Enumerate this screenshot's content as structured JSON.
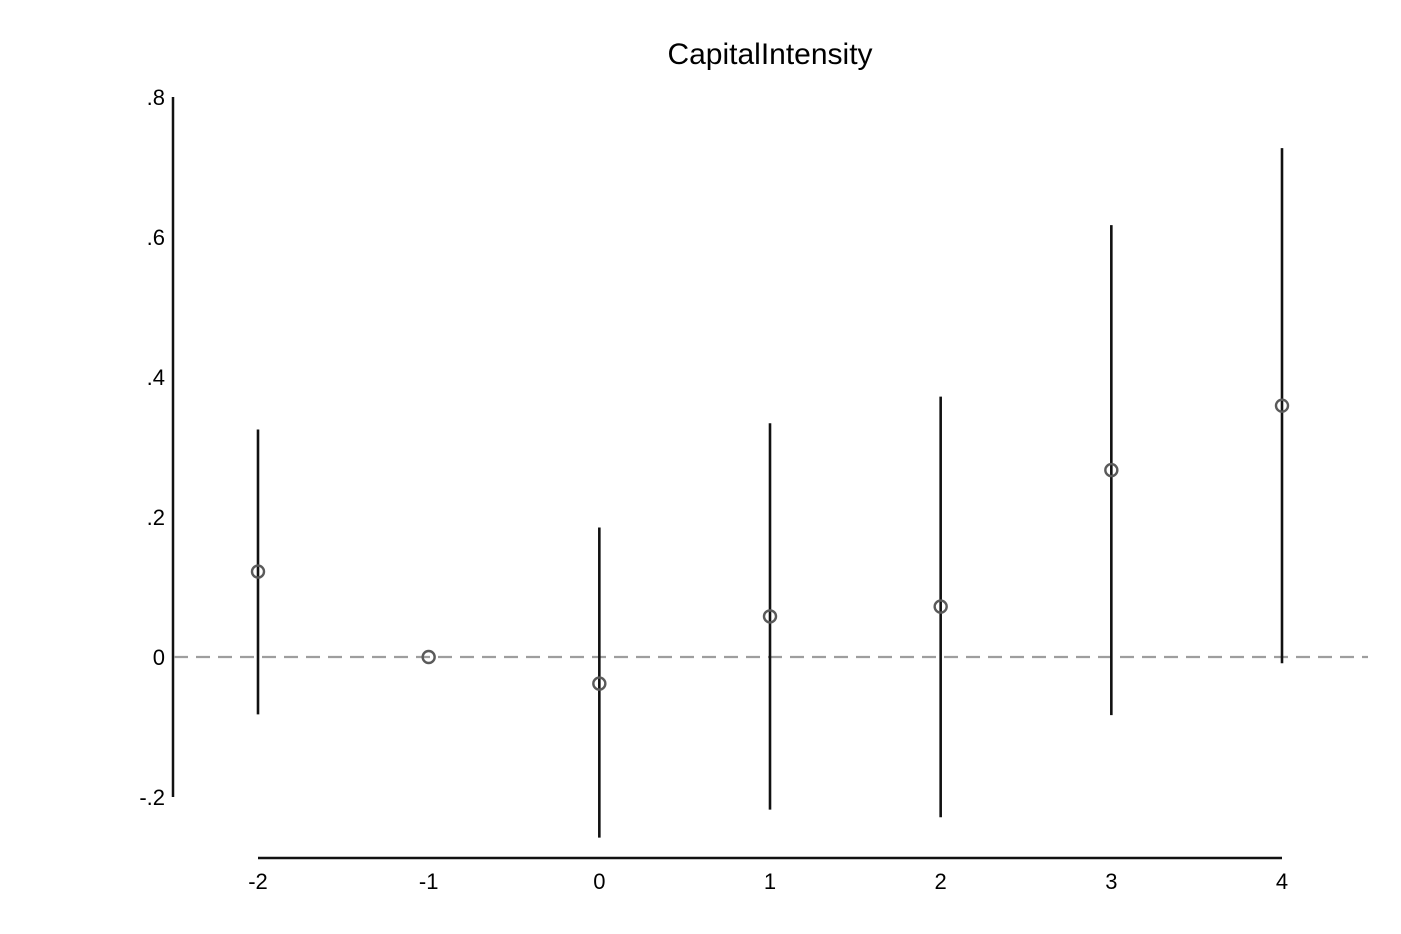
{
  "chart_data": {
    "type": "scatter",
    "title": "CapitalIntensity",
    "xlabel": "",
    "ylabel": "",
    "x": [
      -2,
      -1,
      0,
      1,
      2,
      3,
      4
    ],
    "series": [
      {
        "estimate": [
          0.122,
          0.0,
          -0.038,
          0.058,
          0.072,
          0.267,
          0.359
        ],
        "ci_low": [
          -0.082,
          null,
          -0.258,
          -0.218,
          -0.229,
          -0.083,
          -0.009
        ],
        "ci_high": [
          0.325,
          null,
          0.185,
          0.334,
          0.372,
          0.617,
          0.727
        ]
      }
    ],
    "xlim": [
      -2,
      4
    ],
    "ylim": [
      -0.2,
      0.8
    ],
    "x_ticks": [
      "-2",
      "-1",
      "0",
      "1",
      "2",
      "3",
      "4"
    ],
    "y_ticks": [
      "-.2",
      "0",
      ".2",
      ".4",
      ".6",
      ".8"
    ],
    "reference_line": {
      "y": 0,
      "style": "dashed",
      "color": "#9e9e9e"
    },
    "colors": {
      "ci_bar": "#111111",
      "marker": "#5a5a5a",
      "axis": "#111111"
    },
    "grid": false,
    "legend": "none"
  }
}
